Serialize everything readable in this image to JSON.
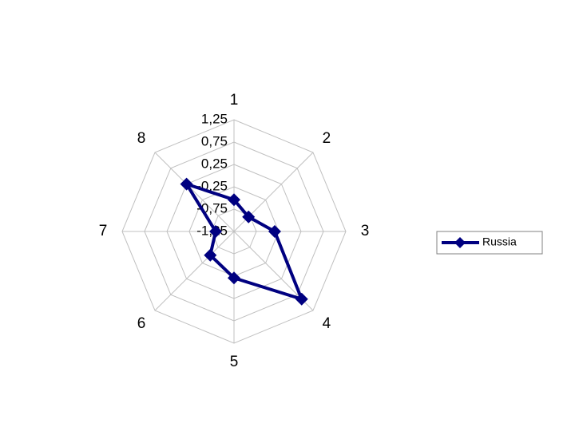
{
  "chart_data": {
    "type": "radar",
    "categories": [
      "1",
      "2",
      "3",
      "4",
      "5",
      "6",
      "7",
      "8"
    ],
    "series": [
      {
        "name": "Russia",
        "color": "#000080",
        "values": [
          -0.54,
          -0.79,
          -0.34,
          0.89,
          -0.21,
          -0.5,
          -0.84,
          0.25
        ]
      }
    ],
    "ylim": [
      -1.25,
      1.25
    ],
    "yticks": [
      {
        "value": -1.25,
        "label": "-1,25"
      },
      {
        "value": -0.75,
        "label": "-0,75"
      },
      {
        "value": -0.25,
        "label": "-0,25"
      },
      {
        "value": 0.25,
        "label": "0,25"
      },
      {
        "value": 0.75,
        "label": "0,75"
      },
      {
        "value": 1.25,
        "label": "1,25"
      }
    ],
    "grid": true,
    "legend": "right"
  }
}
